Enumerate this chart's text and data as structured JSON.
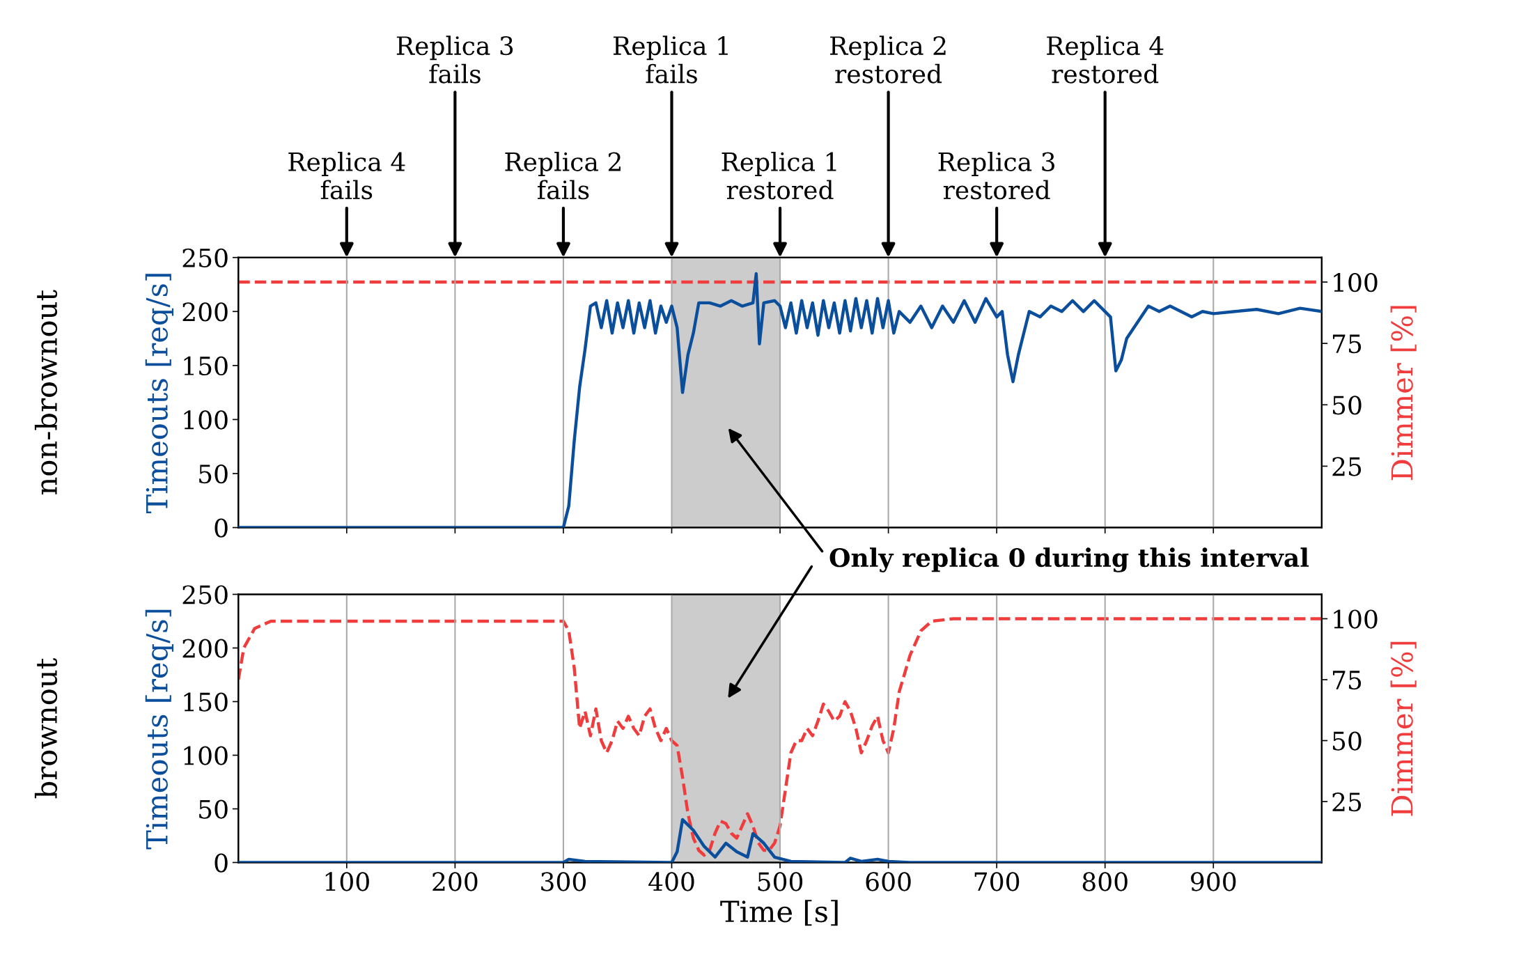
{
  "chart_data": [
    {
      "type": "line",
      "ylabel": "Timeouts [req/s]",
      "y2label": "Dimmer [%]",
      "xlim": [
        0,
        1000
      ],
      "xticks": [
        100,
        200,
        300,
        400,
        500,
        600,
        700,
        800,
        900
      ],
      "ylim": [
        0,
        250
      ],
      "yticks": [
        0,
        50,
        100,
        150,
        200,
        250
      ],
      "y2lim": [
        0,
        110
      ],
      "y2ticks": [
        25,
        50,
        75,
        100
      ],
      "grid": "x",
      "tick_labels": "y",
      "bands": [
        {
          "axis": "x",
          "from": 400,
          "to": 500,
          "color": "#cccccc"
        }
      ],
      "annotations": [
        "non-brownout",
        "Replica 4\nfails",
        "Replica 3\nfails",
        "Replica 2\nfails",
        "Replica 1\nfails",
        "Replica 1\nrestored",
        "Replica 2\nrestored",
        "Replica 3\nrestored",
        "Replica 4\nrestored",
        "Only replica 0 during this interval"
      ],
      "series": [
        {
          "color": "#0b4f9c",
          "line_style": "solid",
          "x": [
            0,
            300,
            305,
            310,
            315,
            320,
            325,
            330,
            335,
            340,
            345,
            350,
            355,
            360,
            365,
            370,
            375,
            380,
            385,
            390,
            395,
            400,
            405,
            410,
            415,
            420,
            425,
            435,
            445,
            455,
            465,
            475,
            478,
            481,
            485,
            495,
            500,
            505,
            510,
            515,
            520,
            525,
            530,
            535,
            540,
            545,
            550,
            555,
            560,
            565,
            570,
            575,
            580,
            585,
            590,
            595,
            600,
            605,
            610,
            620,
            630,
            640,
            650,
            660,
            670,
            680,
            690,
            700,
            705,
            710,
            715,
            720,
            725,
            730,
            740,
            750,
            760,
            770,
            780,
            790,
            800,
            805,
            810,
            815,
            820,
            830,
            840,
            850,
            860,
            870,
            880,
            890,
            900,
            920,
            940,
            960,
            980,
            1000
          ],
          "values": [
            0,
            0,
            20,
            80,
            130,
            165,
            205,
            208,
            185,
            210,
            180,
            208,
            185,
            210,
            180,
            208,
            185,
            210,
            180,
            205,
            190,
            205,
            185,
            125,
            160,
            180,
            208,
            208,
            205,
            210,
            205,
            208,
            235,
            170,
            208,
            210,
            205,
            185,
            208,
            180,
            210,
            185,
            208,
            178,
            210,
            185,
            208,
            180,
            210,
            182,
            212,
            185,
            210,
            180,
            212,
            185,
            210,
            180,
            200,
            190,
            205,
            185,
            205,
            190,
            210,
            190,
            212,
            195,
            200,
            160,
            135,
            160,
            180,
            200,
            195,
            205,
            200,
            210,
            200,
            210,
            200,
            195,
            145,
            155,
            175,
            190,
            205,
            200,
            205,
            200,
            195,
            200,
            198,
            200,
            202,
            198,
            203,
            200
          ]
        },
        {
          "color": "#f03c3c",
          "line_style": "dashed",
          "axis": "y2",
          "x": [
            0,
            1000
          ],
          "values": [
            100,
            100
          ]
        }
      ]
    },
    {
      "type": "line",
      "ylabel": "Timeouts [req/s]",
      "y2label": "Dimmer [%]",
      "xlabel": "Time [s]",
      "xlim": [
        0,
        1000
      ],
      "xticks": [
        100,
        200,
        300,
        400,
        500,
        600,
        700,
        800,
        900
      ],
      "ylim": [
        0,
        250
      ],
      "yticks": [
        0,
        50,
        100,
        150,
        200,
        250
      ],
      "y2lim": [
        0,
        110
      ],
      "y2ticks": [
        25,
        50,
        75,
        100
      ],
      "grid": "x",
      "bands": [
        {
          "axis": "x",
          "from": 400,
          "to": 500,
          "color": "#cccccc"
        }
      ],
      "annotations": [
        "brownout"
      ],
      "series": [
        {
          "color": "#0b4f9c",
          "line_style": "solid",
          "x": [
            0,
            300,
            305,
            320,
            400,
            405,
            410,
            420,
            430,
            440,
            450,
            460,
            470,
            475,
            485,
            495,
            510,
            560,
            565,
            575,
            590,
            600,
            620,
            1000
          ],
          "values": [
            0,
            0,
            3,
            1,
            0,
            10,
            40,
            30,
            15,
            5,
            18,
            10,
            5,
            27,
            18,
            5,
            1,
            0,
            4,
            1,
            3,
            1,
            0,
            0
          ]
        },
        {
          "color": "#f03c3c",
          "line_style": "dashed",
          "axis": "y2",
          "x": [
            0,
            5,
            15,
            30,
            100,
            200,
            300,
            305,
            310,
            315,
            320,
            325,
            330,
            335,
            340,
            345,
            350,
            355,
            360,
            365,
            370,
            375,
            380,
            385,
            390,
            395,
            400,
            405,
            410,
            415,
            420,
            425,
            430,
            435,
            440,
            445,
            450,
            455,
            460,
            465,
            470,
            475,
            480,
            485,
            490,
            495,
            500,
            505,
            510,
            515,
            520,
            525,
            530,
            535,
            540,
            545,
            550,
            555,
            560,
            565,
            570,
            575,
            580,
            585,
            590,
            595,
            600,
            605,
            610,
            620,
            630,
            640,
            660,
            1000
          ],
          "values": [
            75,
            88,
            96,
            99,
            99,
            99,
            99,
            95,
            80,
            55,
            62,
            52,
            63,
            50,
            45,
            50,
            58,
            55,
            60,
            55,
            52,
            60,
            63,
            55,
            50,
            55,
            50,
            48,
            35,
            20,
            10,
            5,
            3,
            5,
            12,
            17,
            16,
            12,
            10,
            15,
            20,
            15,
            8,
            5,
            5,
            8,
            15,
            30,
            45,
            50,
            50,
            55,
            52,
            58,
            65,
            62,
            58,
            60,
            66,
            62,
            55,
            45,
            50,
            56,
            60,
            50,
            45,
            55,
            70,
            85,
            95,
            99,
            100,
            100
          ]
        }
      ]
    }
  ]
}
